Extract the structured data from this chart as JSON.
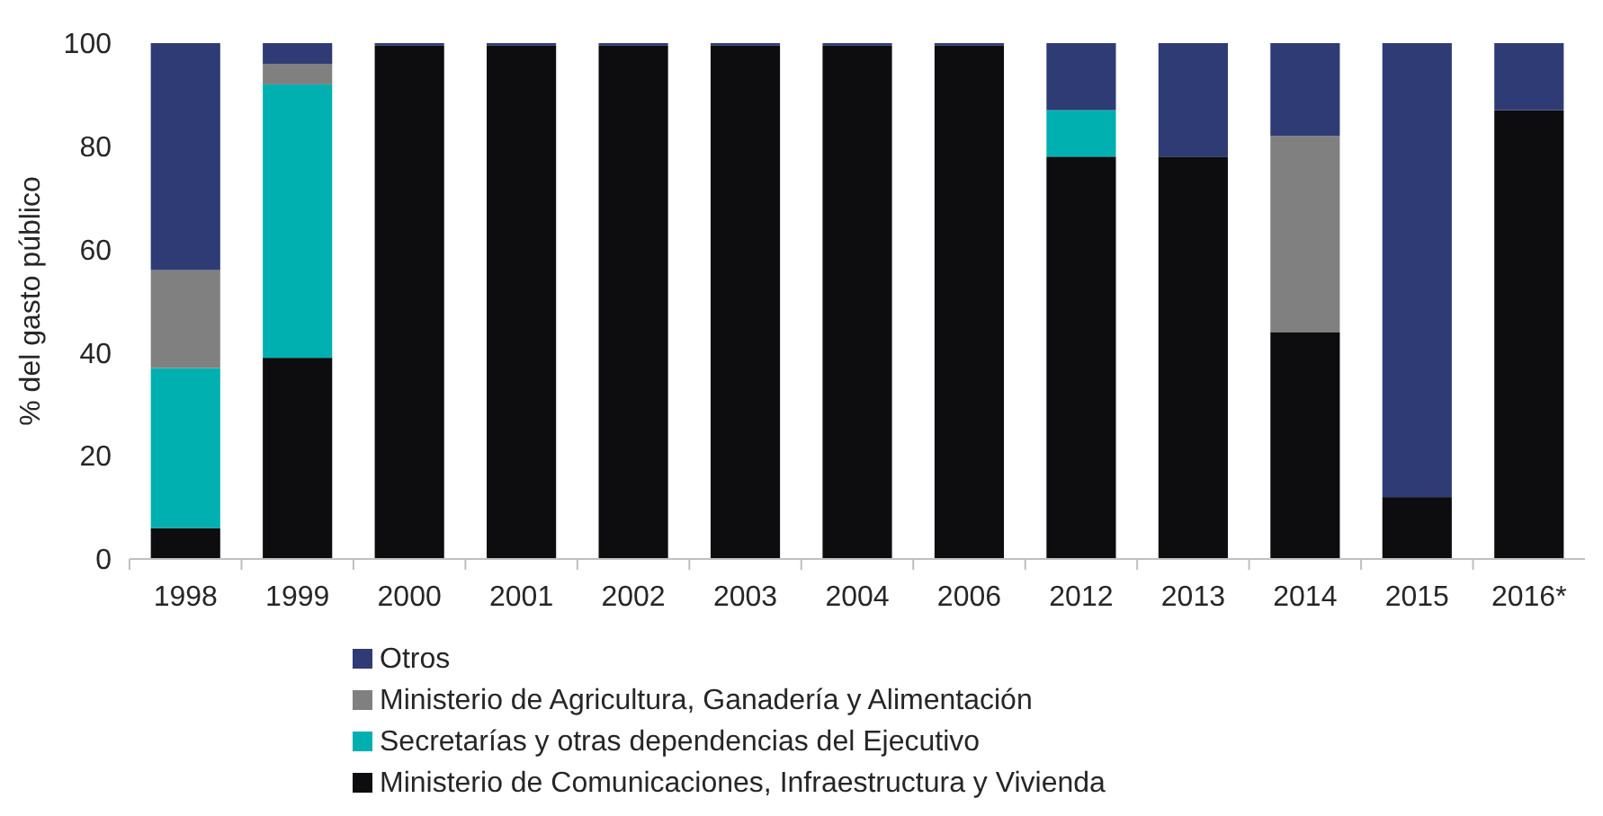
{
  "chart_data": {
    "type": "bar",
    "stacked": true,
    "ylabel": "% del gasto público",
    "categories": [
      "1998",
      "1999",
      "2000",
      "2001",
      "2002",
      "2003",
      "2004",
      "2006",
      "2012",
      "2013",
      "2014",
      "2015",
      "2016*"
    ],
    "series": [
      {
        "name": "Ministerio de Comunicaciones, Infraestructura y Vivienda",
        "color": "#0d0d0f",
        "values": [
          6,
          39,
          99.5,
          99.5,
          99.5,
          99.5,
          99.5,
          99.5,
          78,
          78,
          44,
          12,
          87
        ]
      },
      {
        "name": "Secretarías y otras dependencias del Ejecutivo",
        "color": "#00b0b0",
        "values": [
          31,
          53,
          0,
          0,
          0,
          0,
          0,
          0,
          9,
          0,
          0,
          0,
          0
        ]
      },
      {
        "name": "Ministerio de Agricultura, Ganadería y Alimentación",
        "color": "#808080",
        "values": [
          19,
          4,
          0,
          0,
          0,
          0,
          0,
          0,
          0,
          0,
          38,
          0,
          0
        ]
      },
      {
        "name": "Otros",
        "color": "#2e3b74",
        "values": [
          44,
          4,
          0.5,
          0.5,
          0.5,
          0.5,
          0.5,
          0.5,
          13,
          22,
          18,
          88,
          13
        ]
      }
    ],
    "ylim": [
      0,
      100
    ],
    "yticks": [
      0,
      20,
      40,
      60,
      80,
      100
    ],
    "grid": false,
    "legend": "bottom"
  }
}
